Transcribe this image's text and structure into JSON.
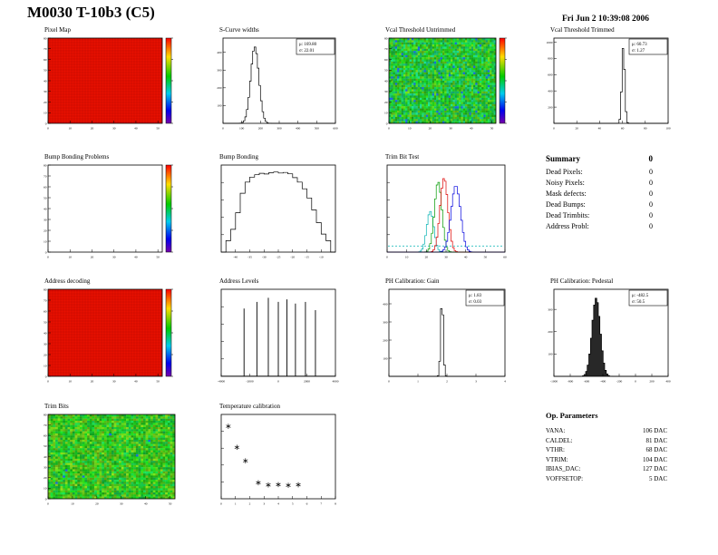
{
  "header": {
    "title": "M0030 T-10b3 (C5)",
    "timestamp": "Fri Jun  2 10:39:08 2006"
  },
  "summary": {
    "title": "Summary",
    "total": "0",
    "rows": [
      {
        "label": "Dead Pixels:",
        "value": "0"
      },
      {
        "label": "Noisy Pixels:",
        "value": "0"
      },
      {
        "label": "Mask defects:",
        "value": "0"
      },
      {
        "label": "Dead Bumps:",
        "value": "0"
      },
      {
        "label": "Dead Trimbits:",
        "value": "0"
      },
      {
        "label": "Address Probl:",
        "value": "0"
      }
    ]
  },
  "op_parameters": {
    "title": "Op. Parameters",
    "rows": [
      {
        "label": "VANA:",
        "value": "106 DAC"
      },
      {
        "label": "CALDEL:",
        "value": "81 DAC"
      },
      {
        "label": "VTHR:",
        "value": "68 DAC"
      },
      {
        "label": "VTRIM:",
        "value": "104 DAC"
      },
      {
        "label": "IBIAS_DAC:",
        "value": "127 DAC"
      },
      {
        "label": "VOFFSETOP:",
        "value": "5 DAC"
      }
    ]
  },
  "chart_data": [
    {
      "id": "pixel-map",
      "type": "heatmap",
      "title": "Pixel Map",
      "x_range": [
        0,
        52
      ],
      "y_range": [
        0,
        80
      ],
      "x_ticks": [
        0,
        10,
        20,
        30,
        40,
        50
      ],
      "y_ticks": [
        0,
        10,
        20,
        30,
        40,
        50,
        60,
        70,
        80
      ],
      "fill": "uniform-high",
      "base_color": "#e81000",
      "colorbar": true,
      "description": "uniform pixel map, all pixels responding (red = max)"
    },
    {
      "id": "s-curve-widths",
      "type": "gauss-hist",
      "title": "S-Curve widths",
      "x_range": [
        0,
        600
      ],
      "x_ticks": [
        0,
        100,
        200,
        300,
        400,
        500,
        600
      ],
      "y_range": [
        0,
        480
      ],
      "y_ticks": [
        100,
        200,
        300,
        400
      ],
      "mu": 169.8,
      "sigma": 22.01,
      "peak": 430,
      "stats": {
        "mu": "169.80",
        "sigma": "22.01"
      }
    },
    {
      "id": "vcal-threshold-untrimmed",
      "type": "heatmap",
      "title": "Vcal Threshold Untrimmed",
      "x_range": [
        0,
        52
      ],
      "y_range": [
        0,
        80
      ],
      "x_ticks": [
        0,
        10,
        20,
        30,
        40,
        50
      ],
      "y_ticks": [
        0,
        10,
        20,
        30,
        40,
        50,
        60,
        70,
        80
      ],
      "fill": "noise",
      "seed": 11,
      "noise": {
        "hue_center": 125,
        "hue_spread": 70,
        "blue_frac": 0.03
      },
      "colorbar": true,
      "description": "noisy untrimmed threshold map, mostly green with scattered blue/cyan pixels"
    },
    {
      "id": "vcal-threshold-trimmed",
      "type": "gauss-hist",
      "title": "Vcal Threshold Trimmed",
      "x_range": [
        0,
        100
      ],
      "x_ticks": [
        0,
        20,
        40,
        60,
        80,
        100
      ],
      "y_range": [
        0,
        1050
      ],
      "y_ticks": [
        200,
        400,
        600,
        800,
        1000
      ],
      "mu": 60.73,
      "sigma": 1.27,
      "peak": 950,
      "stats": {
        "mu": "60.73",
        "sigma": "1.27"
      }
    },
    {
      "id": "bump-bonding-problems",
      "type": "heatmap",
      "title": "Bump Bonding Problems",
      "x_range": [
        0,
        52
      ],
      "y_range": [
        0,
        80
      ],
      "x_ticks": [
        0,
        10,
        20,
        30,
        40,
        50
      ],
      "y_ticks": [
        0,
        10,
        20,
        30,
        40,
        50,
        60,
        70,
        80
      ],
      "fill": "empty",
      "colorbar": true,
      "description": "empty map - no bump bonding problems"
    },
    {
      "id": "bump-bonding",
      "type": "bin-hist",
      "title": "Bump Bonding",
      "x_range": [
        -45,
        -5
      ],
      "x_ticks": [
        -40,
        -35,
        -30,
        -25,
        -20,
        -15,
        -10
      ],
      "log_y": true,
      "bins": [
        0,
        1,
        3,
        10,
        35,
        70,
        95,
        110,
        120,
        115,
        125,
        130,
        122,
        126,
        116,
        92,
        70,
        46,
        26,
        12,
        5,
        2,
        1,
        0
      ]
    },
    {
      "id": "trim-bit-test",
      "type": "multi-gauss",
      "title": "Trim Bit Test",
      "x_range": [
        0,
        60
      ],
      "x_ticks": [
        0,
        10,
        20,
        30,
        40,
        50,
        60
      ],
      "series": [
        {
          "name": "trim-bit-cyan",
          "color": "#00b2b2",
          "mu": 22,
          "sigma": 1.8,
          "peak": 0.55
        },
        {
          "name": "trim-bit-green",
          "color": "#009900",
          "mu": 26,
          "sigma": 1.9,
          "peak": 0.95
        },
        {
          "name": "trim-bit-red",
          "color": "#dd0000",
          "mu": 29,
          "sigma": 2.0,
          "peak": 1.0
        },
        {
          "name": "trim-bit-blue",
          "color": "#0000dd",
          "mu": 35,
          "sigma": 2.4,
          "peak": 0.9
        }
      ],
      "baseline": {
        "color": "#00b2b2",
        "style": "dashed"
      }
    },
    {
      "id": "address-decoding",
      "type": "heatmap",
      "title": "Address decoding",
      "x_range": [
        0,
        52
      ],
      "y_range": [
        0,
        80
      ],
      "x_ticks": [
        0,
        10,
        20,
        30,
        40,
        50
      ],
      "y_ticks": [
        0,
        10,
        20,
        30,
        40,
        50,
        60,
        70,
        80
      ],
      "fill": "uniform-high",
      "base_color": "#e81000",
      "colorbar": true,
      "description": "uniform map, all pixel addresses decoded (red = max)"
    },
    {
      "id": "address-levels",
      "type": "spike-hist",
      "title": "Address Levels",
      "x_range": [
        -4000,
        4000
      ],
      "x_ticks": [
        -4000,
        -2000,
        0,
        2000,
        4000
      ],
      "log_y": true,
      "spikes": [
        {
          "x": -2400,
          "h": 0.82
        },
        {
          "x": -1500,
          "h": 0.9
        },
        {
          "x": -700,
          "h": 0.95
        },
        {
          "x": 0,
          "h": 0.9
        },
        {
          "x": 600,
          "h": 0.93
        },
        {
          "x": 1200,
          "h": 0.88
        },
        {
          "x": 1900,
          "h": 0.9
        },
        {
          "x": 2600,
          "h": 0.8
        }
      ]
    },
    {
      "id": "ph-calibration-gain",
      "type": "gauss-hist",
      "title": "PH Calibration: Gain",
      "x_range": [
        0,
        4
      ],
      "x_ticks": [
        0,
        1,
        2,
        3,
        4
      ],
      "y_range": [
        0,
        480
      ],
      "y_ticks": [
        100,
        200,
        300,
        400
      ],
      "mu": 1.83,
      "sigma": 0.03,
      "peak": 435,
      "stats": {
        "mu": "1.83",
        "sigma": "0.03"
      }
    },
    {
      "id": "ph-calibration-pedestal",
      "type": "gauss-hist",
      "title": "PH Calibration: Pedestal",
      "x_range": [
        -1000,
        400
      ],
      "x_ticks": [
        -1000,
        -800,
        -600,
        -400,
        -200,
        0,
        200,
        400
      ],
      "y_range": [
        0,
        390
      ],
      "y_ticks": [
        100,
        200,
        300
      ],
      "mu": -482.5,
      "sigma": 50.5,
      "peak": 350,
      "fill": "black",
      "stats": {
        "mu": "-482.5",
        "sigma": "50.5"
      }
    },
    {
      "id": "trim-bits",
      "type": "heatmap",
      "title": "Trim Bits",
      "x_range": [
        0,
        52
      ],
      "y_range": [
        0,
        80
      ],
      "x_ticks": [
        0,
        10,
        20,
        30,
        40,
        50
      ],
      "y_ticks": [
        0,
        10,
        20,
        30,
        40,
        50,
        60,
        70,
        80
      ],
      "fill": "noise",
      "seed": 23,
      "noise": {
        "hue_center": 112,
        "hue_spread": 60,
        "blue_frac": 0.004
      },
      "colorbar": false,
      "description": "noisy green/yellow trim bit map"
    },
    {
      "id": "temperature-calibration",
      "type": "scatter",
      "title": "Temperature calibration",
      "x_range": [
        0,
        8
      ],
      "x_ticks": [
        0,
        1,
        2,
        3,
        4,
        5,
        6,
        7,
        8
      ],
      "y_range": [
        0,
        500
      ],
      "marker": "asterisk",
      "points": [
        [
          0.5,
          430
        ],
        [
          1.1,
          305
        ],
        [
          1.7,
          225
        ],
        [
          2.6,
          95
        ],
        [
          3.3,
          82
        ],
        [
          4.0,
          84
        ],
        [
          4.7,
          80
        ],
        [
          5.4,
          83
        ]
      ]
    }
  ]
}
